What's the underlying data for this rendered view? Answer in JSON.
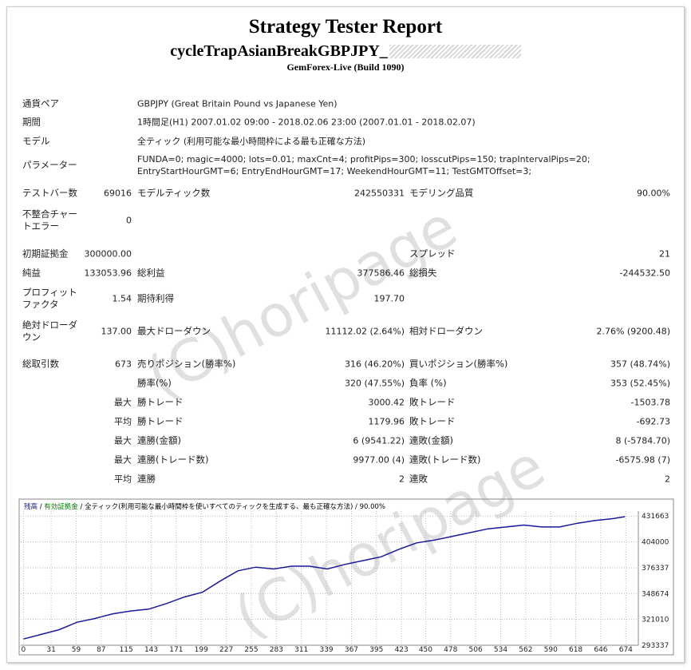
{
  "header": {
    "title": "Strategy Tester Report",
    "subtitle": "cycleTrapAsianBreakGBPJPY_",
    "build": "GemForex-Live (Build 1090)"
  },
  "watermark": "(C)horipage",
  "summary": [
    [
      "通貨ペア",
      "GBPJPY (Great Britain Pound vs Japanese Yen)"
    ],
    [
      "期間",
      "1時間足(H1) 2007.01.02 09:00 - 2018.02.06 23:00 (2007.01.01 - 2018.02.07)"
    ],
    [
      "モデル",
      "全ティック (利用可能な最小時間枠による最も正確な方法)"
    ],
    [
      "パラメーター",
      "FUNDA=0; magic=4000; lots=0.01; maxCnt=4; profitPips=300; losscutPips=150; trapIntervalPips=20; EntryStartHourGMT=6; EntryEndHourGMT=17; WeekendHourGMT=11; TestGMTOffset=3;"
    ]
  ],
  "table": {
    "rows": [
      [
        "テストバー数",
        "69016",
        "モデルティック数",
        "242550331",
        "モデリング品質",
        "90.00%"
      ],
      [
        "不整合チャートエラー",
        "0",
        null,
        null,
        null,
        null
      ],
      [
        "初期証拠金",
        "300000.00",
        null,
        null,
        "スプレッド",
        "21"
      ],
      [
        "純益",
        "133053.96",
        "総利益",
        "377586.46",
        "総損失",
        "-244532.50"
      ],
      [
        "プロフィットファクタ",
        "1.54",
        "期待利得",
        "197.70",
        null,
        null
      ],
      [
        "絶対ドローダウン",
        "137.00",
        "最大ドローダウン",
        "11112.02 (2.64%)",
        "相対ドローダウン",
        "2.76% (9200.48)"
      ],
      [
        "総取引数",
        "673",
        "売りポジション(勝率%)",
        "316 (46.20%)",
        "買いポジション(勝率%)",
        "357 (48.74%)"
      ],
      [
        null,
        null,
        "勝率(%)",
        "320 (47.55%)",
        "負率 (%)",
        "353 (52.45%)"
      ],
      [
        null,
        "最大",
        "勝トレード",
        "3000.42",
        "敗トレード",
        "-1503.78"
      ],
      [
        null,
        "平均",
        "勝トレード",
        "1179.96",
        "敗トレード",
        "-692.73"
      ],
      [
        null,
        "最大",
        "連勝(金額)",
        "6 (9541.22)",
        "連敗(金額)",
        "8 (-5784.70)"
      ],
      [
        null,
        "最大",
        "連勝(トレード数)",
        "9977.00 (4)",
        "連敗(トレード数)",
        "-6575.98 (7)"
      ],
      [
        null,
        "平均",
        "連勝",
        "2",
        "連敗",
        "2"
      ]
    ]
  },
  "chart_data": {
    "type": "line",
    "series": [
      {
        "name": "残高",
        "color": "#1a1a9a",
        "values": [
          300000,
          305000,
          310000,
          318000,
          322000,
          327000,
          330000,
          332000,
          338000,
          345000,
          350000,
          362000,
          373000,
          377000,
          375000,
          378000,
          378000,
          375000,
          380000,
          384000,
          388000,
          396000,
          403000,
          406000,
          410000,
          414000,
          418000,
          420000,
          422000,
          420000,
          420000,
          424000,
          427000,
          429000,
          431000
        ]
      },
      {
        "name": "有効証拠金",
        "color": "#008000"
      }
    ],
    "x": [
      0,
      20,
      40,
      60,
      80,
      100,
      120,
      140,
      160,
      180,
      200,
      220,
      240,
      260,
      280,
      300,
      320,
      340,
      360,
      380,
      400,
      420,
      440,
      460,
      480,
      500,
      520,
      540,
      560,
      580,
      600,
      620,
      640,
      660,
      673
    ],
    "separator": "/",
    "model": "全ティック(利用可能な最小時間枠を使いすべてのティックを生成する、最も正確な方法)",
    "quality": "90.00%",
    "xlim": [
      -3,
      688
    ],
    "ylim": [
      293337,
      437000
    ],
    "xticks": [
      0,
      31,
      59,
      87,
      115,
      143,
      171,
      199,
      227,
      255,
      283,
      311,
      339,
      367,
      395,
      423,
      450,
      478,
      506,
      534,
      562,
      590,
      618,
      646,
      674
    ],
    "yticks": [
      293337,
      321010,
      348674,
      376337,
      404000,
      431663
    ],
    "grid": true
  }
}
